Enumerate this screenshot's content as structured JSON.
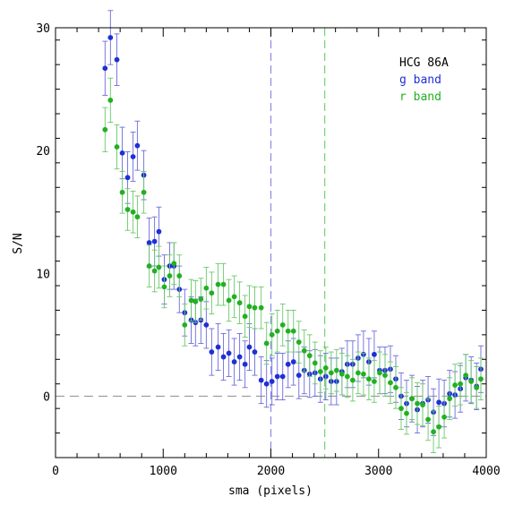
{
  "chart_data": {
    "type": "scatter",
    "xlabel": "sma (pixels)",
    "ylabel": "S/N",
    "xlim": [
      0,
      4000
    ],
    "ylim": [
      -5,
      30
    ],
    "x_ticks": [
      0,
      1000,
      2000,
      3000,
      4000
    ],
    "y_ticks": [
      0,
      10,
      20,
      30
    ],
    "x_minor_step": 200,
    "y_minor_step": 2,
    "legend": {
      "title": "HCG 86A",
      "placement": "top-right",
      "entries": [
        {
          "label": "g band",
          "color": "#1f2fd6"
        },
        {
          "label": "r band",
          "color": "#22b022"
        }
      ]
    },
    "reference_lines": [
      {
        "axis": "y",
        "value": 0,
        "color": "#999999",
        "style": "dashed"
      },
      {
        "axis": "x",
        "value": 2000,
        "color": "#8a8ae8",
        "style": "dashed"
      },
      {
        "axis": "x",
        "value": 2500,
        "color": "#7ad07a",
        "style": "dashed"
      }
    ],
    "series": [
      {
        "name": "g band",
        "color": "#1f2fd6",
        "err_color": "#6a6add",
        "points": [
          [
            460,
            26.7,
            2.2
          ],
          [
            510,
            29.2,
            2.2
          ],
          [
            570,
            27.4,
            2.1
          ],
          [
            620,
            19.8,
            2.1
          ],
          [
            670,
            17.8,
            2.1
          ],
          [
            720,
            19.5,
            2.0
          ],
          [
            760,
            20.4,
            2.0
          ],
          [
            820,
            18.0,
            2.0
          ],
          [
            870,
            12.5,
            2.0
          ],
          [
            920,
            12.6,
            2.0
          ],
          [
            960,
            13.4,
            2.0
          ],
          [
            1010,
            9.5,
            2.0
          ],
          [
            1060,
            10.6,
            1.9
          ],
          [
            1100,
            10.6,
            1.9
          ],
          [
            1150,
            8.7,
            1.9
          ],
          [
            1200,
            6.8,
            1.9
          ],
          [
            1260,
            6.2,
            1.9
          ],
          [
            1300,
            6.0,
            1.9
          ],
          [
            1350,
            6.2,
            1.9
          ],
          [
            1400,
            5.8,
            1.9
          ],
          [
            1450,
            3.6,
            1.9
          ],
          [
            1510,
            4.0,
            1.9
          ],
          [
            1560,
            3.2,
            1.9
          ],
          [
            1610,
            3.5,
            1.9
          ],
          [
            1660,
            2.8,
            1.9
          ],
          [
            1710,
            3.2,
            1.9
          ],
          [
            1760,
            2.6,
            1.9
          ],
          [
            1800,
            4.0,
            1.9
          ],
          [
            1850,
            3.6,
            1.9
          ],
          [
            1910,
            1.3,
            1.9
          ],
          [
            1960,
            1.0,
            1.9
          ],
          [
            2010,
            1.2,
            1.9
          ],
          [
            2060,
            1.6,
            1.9
          ],
          [
            2110,
            1.6,
            1.9
          ],
          [
            2160,
            2.6,
            1.9
          ],
          [
            2210,
            2.8,
            1.9
          ],
          [
            2260,
            1.7,
            1.9
          ],
          [
            2310,
            2.1,
            1.9
          ],
          [
            2360,
            1.8,
            1.9
          ],
          [
            2410,
            1.9,
            1.9
          ],
          [
            2460,
            1.4,
            1.9
          ],
          [
            2510,
            1.6,
            1.9
          ],
          [
            2560,
            1.2,
            1.9
          ],
          [
            2610,
            1.2,
            1.9
          ],
          [
            2660,
            2.0,
            1.9
          ],
          [
            2710,
            2.6,
            1.9
          ],
          [
            2760,
            2.6,
            1.9
          ],
          [
            2810,
            3.1,
            1.9
          ],
          [
            2860,
            3.4,
            1.9
          ],
          [
            2910,
            2.8,
            1.9
          ],
          [
            2960,
            3.4,
            1.9
          ],
          [
            3010,
            2.1,
            1.9
          ],
          [
            3060,
            2.1,
            1.9
          ],
          [
            3110,
            2.2,
            1.9
          ],
          [
            3160,
            1.4,
            1.9
          ],
          [
            3210,
            0.0,
            1.9
          ],
          [
            3260,
            -0.6,
            1.9
          ],
          [
            3310,
            -0.2,
            1.9
          ],
          [
            3360,
            -1.1,
            1.9
          ],
          [
            3410,
            -0.6,
            1.9
          ],
          [
            3460,
            -0.3,
            1.9
          ],
          [
            3510,
            -1.3,
            1.9
          ],
          [
            3560,
            -0.5,
            1.9
          ],
          [
            3610,
            -0.6,
            1.9
          ],
          [
            3660,
            0.2,
            1.9
          ],
          [
            3710,
            0.1,
            1.9
          ],
          [
            3760,
            0.6,
            1.9
          ],
          [
            3810,
            1.5,
            1.9
          ],
          [
            3860,
            1.3,
            1.9
          ],
          [
            3910,
            0.8,
            1.9
          ],
          [
            3950,
            2.2,
            1.9
          ]
        ]
      },
      {
        "name": "r band",
        "color": "#22b022",
        "err_color": "#6ac86a",
        "points": [
          [
            460,
            21.7,
            1.8
          ],
          [
            510,
            24.1,
            1.8
          ],
          [
            570,
            20.3,
            1.8
          ],
          [
            620,
            16.6,
            1.7
          ],
          [
            670,
            15.2,
            1.7
          ],
          [
            720,
            15.0,
            1.7
          ],
          [
            760,
            14.6,
            1.7
          ],
          [
            820,
            16.6,
            1.7
          ],
          [
            870,
            10.6,
            1.7
          ],
          [
            920,
            10.2,
            1.7
          ],
          [
            960,
            10.5,
            1.7
          ],
          [
            1010,
            8.9,
            1.7
          ],
          [
            1060,
            9.8,
            1.7
          ],
          [
            1100,
            10.8,
            1.7
          ],
          [
            1150,
            9.8,
            1.7
          ],
          [
            1200,
            5.8,
            1.7
          ],
          [
            1260,
            7.8,
            1.7
          ],
          [
            1300,
            7.7,
            1.7
          ],
          [
            1350,
            7.9,
            1.7
          ],
          [
            1400,
            8.8,
            1.7
          ],
          [
            1450,
            8.4,
            1.7
          ],
          [
            1510,
            9.1,
            1.7
          ],
          [
            1560,
            9.1,
            1.7
          ],
          [
            1610,
            7.8,
            1.7
          ],
          [
            1660,
            8.1,
            1.7
          ],
          [
            1710,
            7.6,
            1.7
          ],
          [
            1760,
            6.5,
            1.7
          ],
          [
            1800,
            7.3,
            1.7
          ],
          [
            1850,
            7.2,
            1.7
          ],
          [
            1910,
            7.2,
            1.7
          ],
          [
            1960,
            4.3,
            1.7
          ],
          [
            2010,
            5.0,
            1.7
          ],
          [
            2060,
            5.3,
            1.7
          ],
          [
            2110,
            5.8,
            1.7
          ],
          [
            2160,
            5.3,
            1.7
          ],
          [
            2210,
            5.3,
            1.7
          ],
          [
            2260,
            4.4,
            1.7
          ],
          [
            2310,
            3.7,
            1.7
          ],
          [
            2360,
            3.3,
            1.7
          ],
          [
            2410,
            2.7,
            1.7
          ],
          [
            2460,
            2.0,
            1.7
          ],
          [
            2510,
            2.3,
            1.7
          ],
          [
            2560,
            1.9,
            1.7
          ],
          [
            2610,
            2.1,
            1.7
          ],
          [
            2660,
            1.8,
            1.7
          ],
          [
            2710,
            1.6,
            1.7
          ],
          [
            2760,
            1.3,
            1.7
          ],
          [
            2810,
            1.9,
            1.7
          ],
          [
            2860,
            1.8,
            1.7
          ],
          [
            2910,
            1.4,
            1.7
          ],
          [
            2960,
            1.2,
            1.7
          ],
          [
            3010,
            1.9,
            1.7
          ],
          [
            3060,
            1.7,
            1.7
          ],
          [
            3110,
            1.1,
            1.7
          ],
          [
            3160,
            0.7,
            1.7
          ],
          [
            3210,
            -1.0,
            1.7
          ],
          [
            3260,
            -1.4,
            1.7
          ],
          [
            3310,
            -0.2,
            1.7
          ],
          [
            3360,
            -0.6,
            1.7
          ],
          [
            3410,
            -0.7,
            1.7
          ],
          [
            3460,
            -1.9,
            1.7
          ],
          [
            3510,
            -2.9,
            1.7
          ],
          [
            3560,
            -2.5,
            1.7
          ],
          [
            3610,
            -1.7,
            1.7
          ],
          [
            3660,
            -0.2,
            1.7
          ],
          [
            3710,
            0.9,
            1.7
          ],
          [
            3760,
            1.0,
            1.7
          ],
          [
            3810,
            1.7,
            1.7
          ],
          [
            3860,
            1.2,
            1.7
          ],
          [
            3910,
            0.7,
            1.7
          ],
          [
            3950,
            1.4,
            1.7
          ]
        ]
      }
    ]
  }
}
